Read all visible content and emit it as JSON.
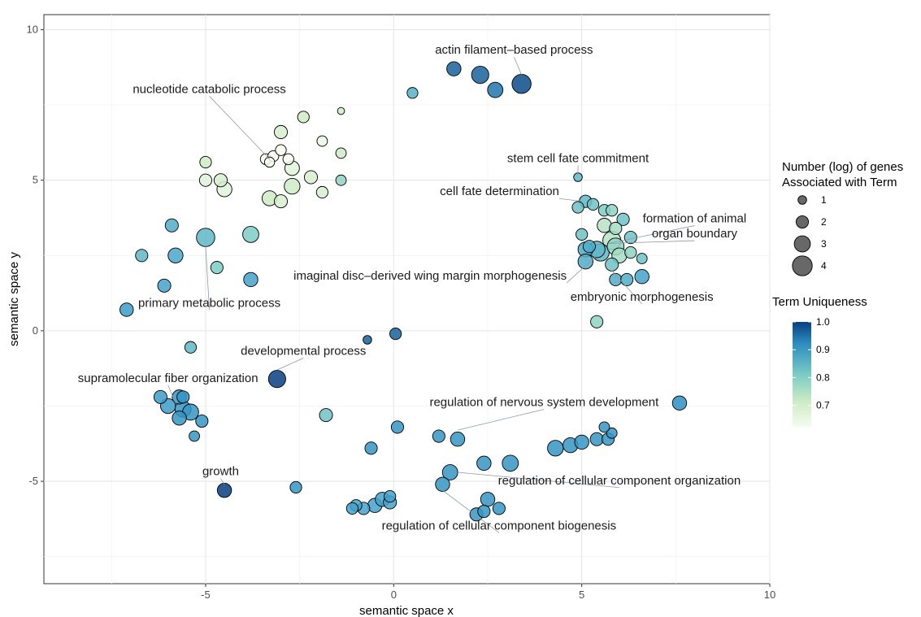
{
  "chart_data": {
    "type": "scatter",
    "xlabel": "semantic space x",
    "ylabel": "semantic space y",
    "xlim": [
      -9.3,
      10.0
    ],
    "ylim": [
      -8.4,
      10.5
    ],
    "xticks": [
      -5,
      0,
      5,
      10
    ],
    "xtick_labels": [
      "-5",
      "0",
      "5",
      "10"
    ],
    "yticks": [
      -5,
      0,
      5,
      10
    ],
    "ytick_labels": [
      "-5",
      "0",
      "5",
      "10"
    ],
    "grid": true,
    "legend_size": {
      "title_line1": "Number (log) of genes",
      "title_line2": "Associated with Term",
      "values": [
        1,
        2,
        3,
        4
      ],
      "labels": [
        "1",
        "2",
        "3",
        "4"
      ]
    },
    "legend_color": {
      "title": "Term Uniqueness",
      "range": [
        0.62,
        1.0
      ],
      "ticks": [
        1.0,
        0.9,
        0.8,
        0.7
      ],
      "labels": [
        "1.0",
        "0.9",
        "0.8",
        "0.7"
      ],
      "color_low": "#f7fcf0",
      "color_mid": "#7bccc4",
      "color_high": "#084081"
    },
    "points": [
      {
        "x": 1.6,
        "y": 8.7,
        "size": 2.5,
        "u": 0.97
      },
      {
        "x": 2.3,
        "y": 8.5,
        "size": 3.3,
        "u": 0.97
      },
      {
        "x": 2.7,
        "y": 8.0,
        "size": 2.8,
        "u": 0.95
      },
      {
        "x": 3.4,
        "y": 8.2,
        "size": 3.8,
        "u": 0.99
      },
      {
        "x": 0.5,
        "y": 7.9,
        "size": 1.6,
        "u": 0.83
      },
      {
        "x": -2.7,
        "y": 5.4,
        "size": 2.6,
        "u": 0.66
      },
      {
        "x": -3.4,
        "y": 5.7,
        "size": 1.6,
        "u": 0.62
      },
      {
        "x": -3.2,
        "y": 5.8,
        "size": 1.6,
        "u": 0.62
      },
      {
        "x": -3.0,
        "y": 6.0,
        "size": 1.6,
        "u": 0.62
      },
      {
        "x": -2.8,
        "y": 5.7,
        "size": 1.6,
        "u": 0.62
      },
      {
        "x": -3.3,
        "y": 5.6,
        "size": 1.4,
        "u": 0.62
      },
      {
        "x": -3.0,
        "y": 6.6,
        "size": 2.2,
        "u": 0.68
      },
      {
        "x": -3.0,
        "y": 4.3,
        "size": 2.2,
        "u": 0.68
      },
      {
        "x": -3.3,
        "y": 4.4,
        "size": 2.7,
        "u": 0.7
      },
      {
        "x": -2.7,
        "y": 4.8,
        "size": 2.9,
        "u": 0.7
      },
      {
        "x": -2.4,
        "y": 7.1,
        "size": 1.8,
        "u": 0.7
      },
      {
        "x": -2.2,
        "y": 5.1,
        "size": 2.2,
        "u": 0.68
      },
      {
        "x": -1.9,
        "y": 6.3,
        "size": 1.5,
        "u": 0.64
      },
      {
        "x": -1.9,
        "y": 4.6,
        "size": 1.8,
        "u": 0.68
      },
      {
        "x": -1.4,
        "y": 7.3,
        "size": 0.6,
        "u": 0.7
      },
      {
        "x": -1.4,
        "y": 5.9,
        "size": 1.5,
        "u": 0.7
      },
      {
        "x": -1.4,
        "y": 5.0,
        "size": 1.5,
        "u": 0.76
      },
      {
        "x": -5.0,
        "y": 5.6,
        "size": 1.8,
        "u": 0.7
      },
      {
        "x": -5.0,
        "y": 5.0,
        "size": 2.0,
        "u": 0.66
      },
      {
        "x": -4.6,
        "y": 5.0,
        "size": 2.2,
        "u": 0.68
      },
      {
        "x": -4.5,
        "y": 4.7,
        "size": 2.7,
        "u": 0.66
      },
      {
        "x": -5.9,
        "y": 3.5,
        "size": 2.2,
        "u": 0.84
      },
      {
        "x": -6.7,
        "y": 2.5,
        "size": 2.0,
        "u": 0.82
      },
      {
        "x": -5.8,
        "y": 2.5,
        "size": 2.7,
        "u": 0.85
      },
      {
        "x": -5.0,
        "y": 3.1,
        "size": 3.6,
        "u": 0.82
      },
      {
        "x": -3.8,
        "y": 3.2,
        "size": 3.0,
        "u": 0.78
      },
      {
        "x": -4.7,
        "y": 2.1,
        "size": 2.0,
        "u": 0.78
      },
      {
        "x": -6.1,
        "y": 1.5,
        "size": 2.2,
        "u": 0.86
      },
      {
        "x": -3.8,
        "y": 1.7,
        "size": 2.5,
        "u": 0.86
      },
      {
        "x": -7.1,
        "y": 0.7,
        "size": 2.3,
        "u": 0.88
      },
      {
        "x": -5.4,
        "y": -0.55,
        "size": 1.8,
        "u": 0.82
      },
      {
        "x": -0.7,
        "y": -0.3,
        "size": 1.0,
        "u": 0.97
      },
      {
        "x": 0.05,
        "y": -0.1,
        "size": 1.8,
        "u": 0.97
      },
      {
        "x": -3.1,
        "y": -1.6,
        "size": 3.3,
        "u": 1.0
      },
      {
        "x": -6.2,
        "y": -2.2,
        "size": 2.2,
        "u": 0.88
      },
      {
        "x": -6.0,
        "y": -2.5,
        "size": 2.7,
        "u": 0.88
      },
      {
        "x": -5.7,
        "y": -2.2,
        "size": 2.5,
        "u": 0.9
      },
      {
        "x": -5.6,
        "y": -2.2,
        "size": 2.0,
        "u": 0.9
      },
      {
        "x": -5.6,
        "y": -2.6,
        "size": 3.0,
        "u": 0.9
      },
      {
        "x": -5.4,
        "y": -2.7,
        "size": 3.0,
        "u": 0.9
      },
      {
        "x": -5.7,
        "y": -2.9,
        "size": 2.5,
        "u": 0.9
      },
      {
        "x": -5.1,
        "y": -3.0,
        "size": 2.0,
        "u": 0.9
      },
      {
        "x": -5.3,
        "y": -3.5,
        "size": 1.5,
        "u": 0.9
      },
      {
        "x": -1.8,
        "y": -2.8,
        "size": 2.2,
        "u": 0.8
      },
      {
        "x": -4.5,
        "y": -5.3,
        "size": 2.5,
        "u": 1.0
      },
      {
        "x": -2.6,
        "y": -5.2,
        "size": 1.8,
        "u": 0.9
      },
      {
        "x": -0.6,
        "y": -3.9,
        "size": 2.0,
        "u": 0.9
      },
      {
        "x": 0.1,
        "y": -3.2,
        "size": 2.0,
        "u": 0.9
      },
      {
        "x": 1.2,
        "y": -3.5,
        "size": 2.0,
        "u": 0.9
      },
      {
        "x": 1.7,
        "y": -3.6,
        "size": 2.5,
        "u": 0.9
      },
      {
        "x": 1.5,
        "y": -4.7,
        "size": 2.8,
        "u": 0.9
      },
      {
        "x": 1.3,
        "y": -5.1,
        "size": 2.5,
        "u": 0.9
      },
      {
        "x": 2.4,
        "y": -4.4,
        "size": 2.5,
        "u": 0.9
      },
      {
        "x": 3.1,
        "y": -4.4,
        "size": 3.0,
        "u": 0.9
      },
      {
        "x": 4.3,
        "y": -3.9,
        "size": 2.9,
        "u": 0.9
      },
      {
        "x": 4.7,
        "y": -3.8,
        "size": 2.7,
        "u": 0.9
      },
      {
        "x": 5.0,
        "y": -3.7,
        "size": 2.5,
        "u": 0.9
      },
      {
        "x": 5.4,
        "y": -3.6,
        "size": 2.2,
        "u": 0.9
      },
      {
        "x": 5.7,
        "y": -3.6,
        "size": 2.0,
        "u": 0.9
      },
      {
        "x": 5.8,
        "y": -3.4,
        "size": 1.5,
        "u": 0.9
      },
      {
        "x": 5.6,
        "y": -3.2,
        "size": 1.5,
        "u": 0.9
      },
      {
        "x": 7.6,
        "y": -2.4,
        "size": 2.5,
        "u": 0.92
      },
      {
        "x": -1.0,
        "y": -5.8,
        "size": 1.8,
        "u": 0.86
      },
      {
        "x": -0.8,
        "y": -5.9,
        "size": 2.0,
        "u": 0.86
      },
      {
        "x": -0.5,
        "y": -5.8,
        "size": 2.5,
        "u": 0.86
      },
      {
        "x": -0.3,
        "y": -5.6,
        "size": 2.5,
        "u": 0.86
      },
      {
        "x": -0.1,
        "y": -5.7,
        "size": 2.2,
        "u": 0.86
      },
      {
        "x": -0.1,
        "y": -5.5,
        "size": 1.8,
        "u": 0.86
      },
      {
        "x": -1.1,
        "y": -5.9,
        "size": 1.8,
        "u": 0.86
      },
      {
        "x": 2.2,
        "y": -6.1,
        "size": 2.2,
        "u": 0.9
      },
      {
        "x": 2.4,
        "y": -6.0,
        "size": 2.0,
        "u": 0.9
      },
      {
        "x": 2.5,
        "y": -5.6,
        "size": 2.5,
        "u": 0.9
      },
      {
        "x": 2.8,
        "y": -5.9,
        "size": 2.0,
        "u": 0.9
      },
      {
        "x": 4.9,
        "y": 5.1,
        "size": 1.0,
        "u": 0.82
      },
      {
        "x": 5.1,
        "y": 4.3,
        "size": 2.0,
        "u": 0.82
      },
      {
        "x": 5.3,
        "y": 4.2,
        "size": 1.8,
        "u": 0.8
      },
      {
        "x": 4.9,
        "y": 4.1,
        "size": 1.8,
        "u": 0.8
      },
      {
        "x": 5.6,
        "y": 4.0,
        "size": 1.8,
        "u": 0.78
      },
      {
        "x": 5.8,
        "y": 4.0,
        "size": 1.8,
        "u": 0.76
      },
      {
        "x": 6.1,
        "y": 3.7,
        "size": 2.0,
        "u": 0.8
      },
      {
        "x": 5.6,
        "y": 3.5,
        "size": 2.5,
        "u": 0.72
      },
      {
        "x": 5.9,
        "y": 3.4,
        "size": 2.0,
        "u": 0.74
      },
      {
        "x": 5.8,
        "y": 3.0,
        "size": 3.5,
        "u": 0.72
      },
      {
        "x": 6.3,
        "y": 3.1,
        "size": 2.0,
        "u": 0.8
      },
      {
        "x": 5.0,
        "y": 3.2,
        "size": 1.8,
        "u": 0.8
      },
      {
        "x": 5.2,
        "y": 2.8,
        "size": 2.0,
        "u": 0.84
      },
      {
        "x": 5.1,
        "y": 2.7,
        "size": 2.7,
        "u": 0.84
      },
      {
        "x": 5.4,
        "y": 2.7,
        "size": 3.1,
        "u": 0.82
      },
      {
        "x": 5.5,
        "y": 2.6,
        "size": 3.3,
        "u": 0.82
      },
      {
        "x": 5.9,
        "y": 2.8,
        "size": 3.2,
        "u": 0.76
      },
      {
        "x": 6.0,
        "y": 2.5,
        "size": 2.7,
        "u": 0.74
      },
      {
        "x": 6.3,
        "y": 2.6,
        "size": 1.8,
        "u": 0.76
      },
      {
        "x": 6.6,
        "y": 2.4,
        "size": 1.5,
        "u": 0.8
      },
      {
        "x": 5.1,
        "y": 2.3,
        "size": 2.7,
        "u": 0.84
      },
      {
        "x": 5.8,
        "y": 2.2,
        "size": 2.2,
        "u": 0.8
      },
      {
        "x": 5.9,
        "y": 1.7,
        "size": 2.0,
        "u": 0.84
      },
      {
        "x": 6.2,
        "y": 1.7,
        "size": 2.0,
        "u": 0.84
      },
      {
        "x": 6.6,
        "y": 1.8,
        "size": 2.5,
        "u": 0.86
      },
      {
        "x": 5.4,
        "y": 0.3,
        "size": 2.0,
        "u": 0.76
      }
    ],
    "annotations": [
      {
        "text": "actin filament–based process",
        "x": 3.2,
        "y": 9.2,
        "anchor": "middle",
        "lx": 3.4,
        "ly": 8.5
      },
      {
        "text": "nucleotide catabolic process",
        "x": -4.9,
        "y": 7.9,
        "anchor": "middle",
        "lx": -3.3,
        "ly": 5.7
      },
      {
        "text": "stem cell fate commitment",
        "x": 4.9,
        "y": 5.6,
        "anchor": "middle",
        "lx": 4.9,
        "ly": 5.2
      },
      {
        "text": "cell fate determination",
        "x": 4.4,
        "y": 4.5,
        "anchor": "end",
        "lx": 5.0,
        "ly": 4.3
      },
      {
        "text": "formation of animal",
        "x": 8.0,
        "y": 3.6,
        "anchor": "middle",
        "lx": 5.7,
        "ly": 2.9
      },
      {
        "text": "organ boundary",
        "x": 8.0,
        "y": 3.1,
        "anchor": "middle",
        "lx": 5.7,
        "ly": 2.9
      },
      {
        "text": "imaginal disc–derived wing margin morphogenesis",
        "x": 4.6,
        "y": 1.7,
        "anchor": "end",
        "lx": 5.4,
        "ly": 2.5
      },
      {
        "text": "embryonic morphogenesis",
        "x": 6.6,
        "y": 1.0,
        "anchor": "middle",
        "lx": 5.8,
        "ly": 2.0
      },
      {
        "text": "primary metabolic process",
        "x": -4.9,
        "y": 0.8,
        "anchor": "middle",
        "lx": -5.0,
        "ly": 2.8
      },
      {
        "text": "developmental process",
        "x": -2.4,
        "y": -0.8,
        "anchor": "middle",
        "lx": -3.1,
        "ly": -1.3
      },
      {
        "text": "supramolecular fiber organization",
        "x": -6.0,
        "y": -1.7,
        "anchor": "middle",
        "lx": -5.8,
        "ly": -2.4
      },
      {
        "text": "regulation of nervous system development",
        "x": 4.0,
        "y": -2.5,
        "anchor": "middle",
        "lx": 1.7,
        "ly": -3.3
      },
      {
        "text": "growth",
        "x": -4.6,
        "y": -4.8,
        "anchor": "middle",
        "lx": -4.5,
        "ly": -5.1
      },
      {
        "text": "regulation of cellular component organization",
        "x": 6.0,
        "y": -5.1,
        "anchor": "middle",
        "lx": 1.7,
        "ly": -4.7
      },
      {
        "text": "regulation of cellular component biogenesis",
        "x": 2.8,
        "y": -6.6,
        "anchor": "middle",
        "lx": 1.3,
        "ly": -5.3
      }
    ]
  }
}
